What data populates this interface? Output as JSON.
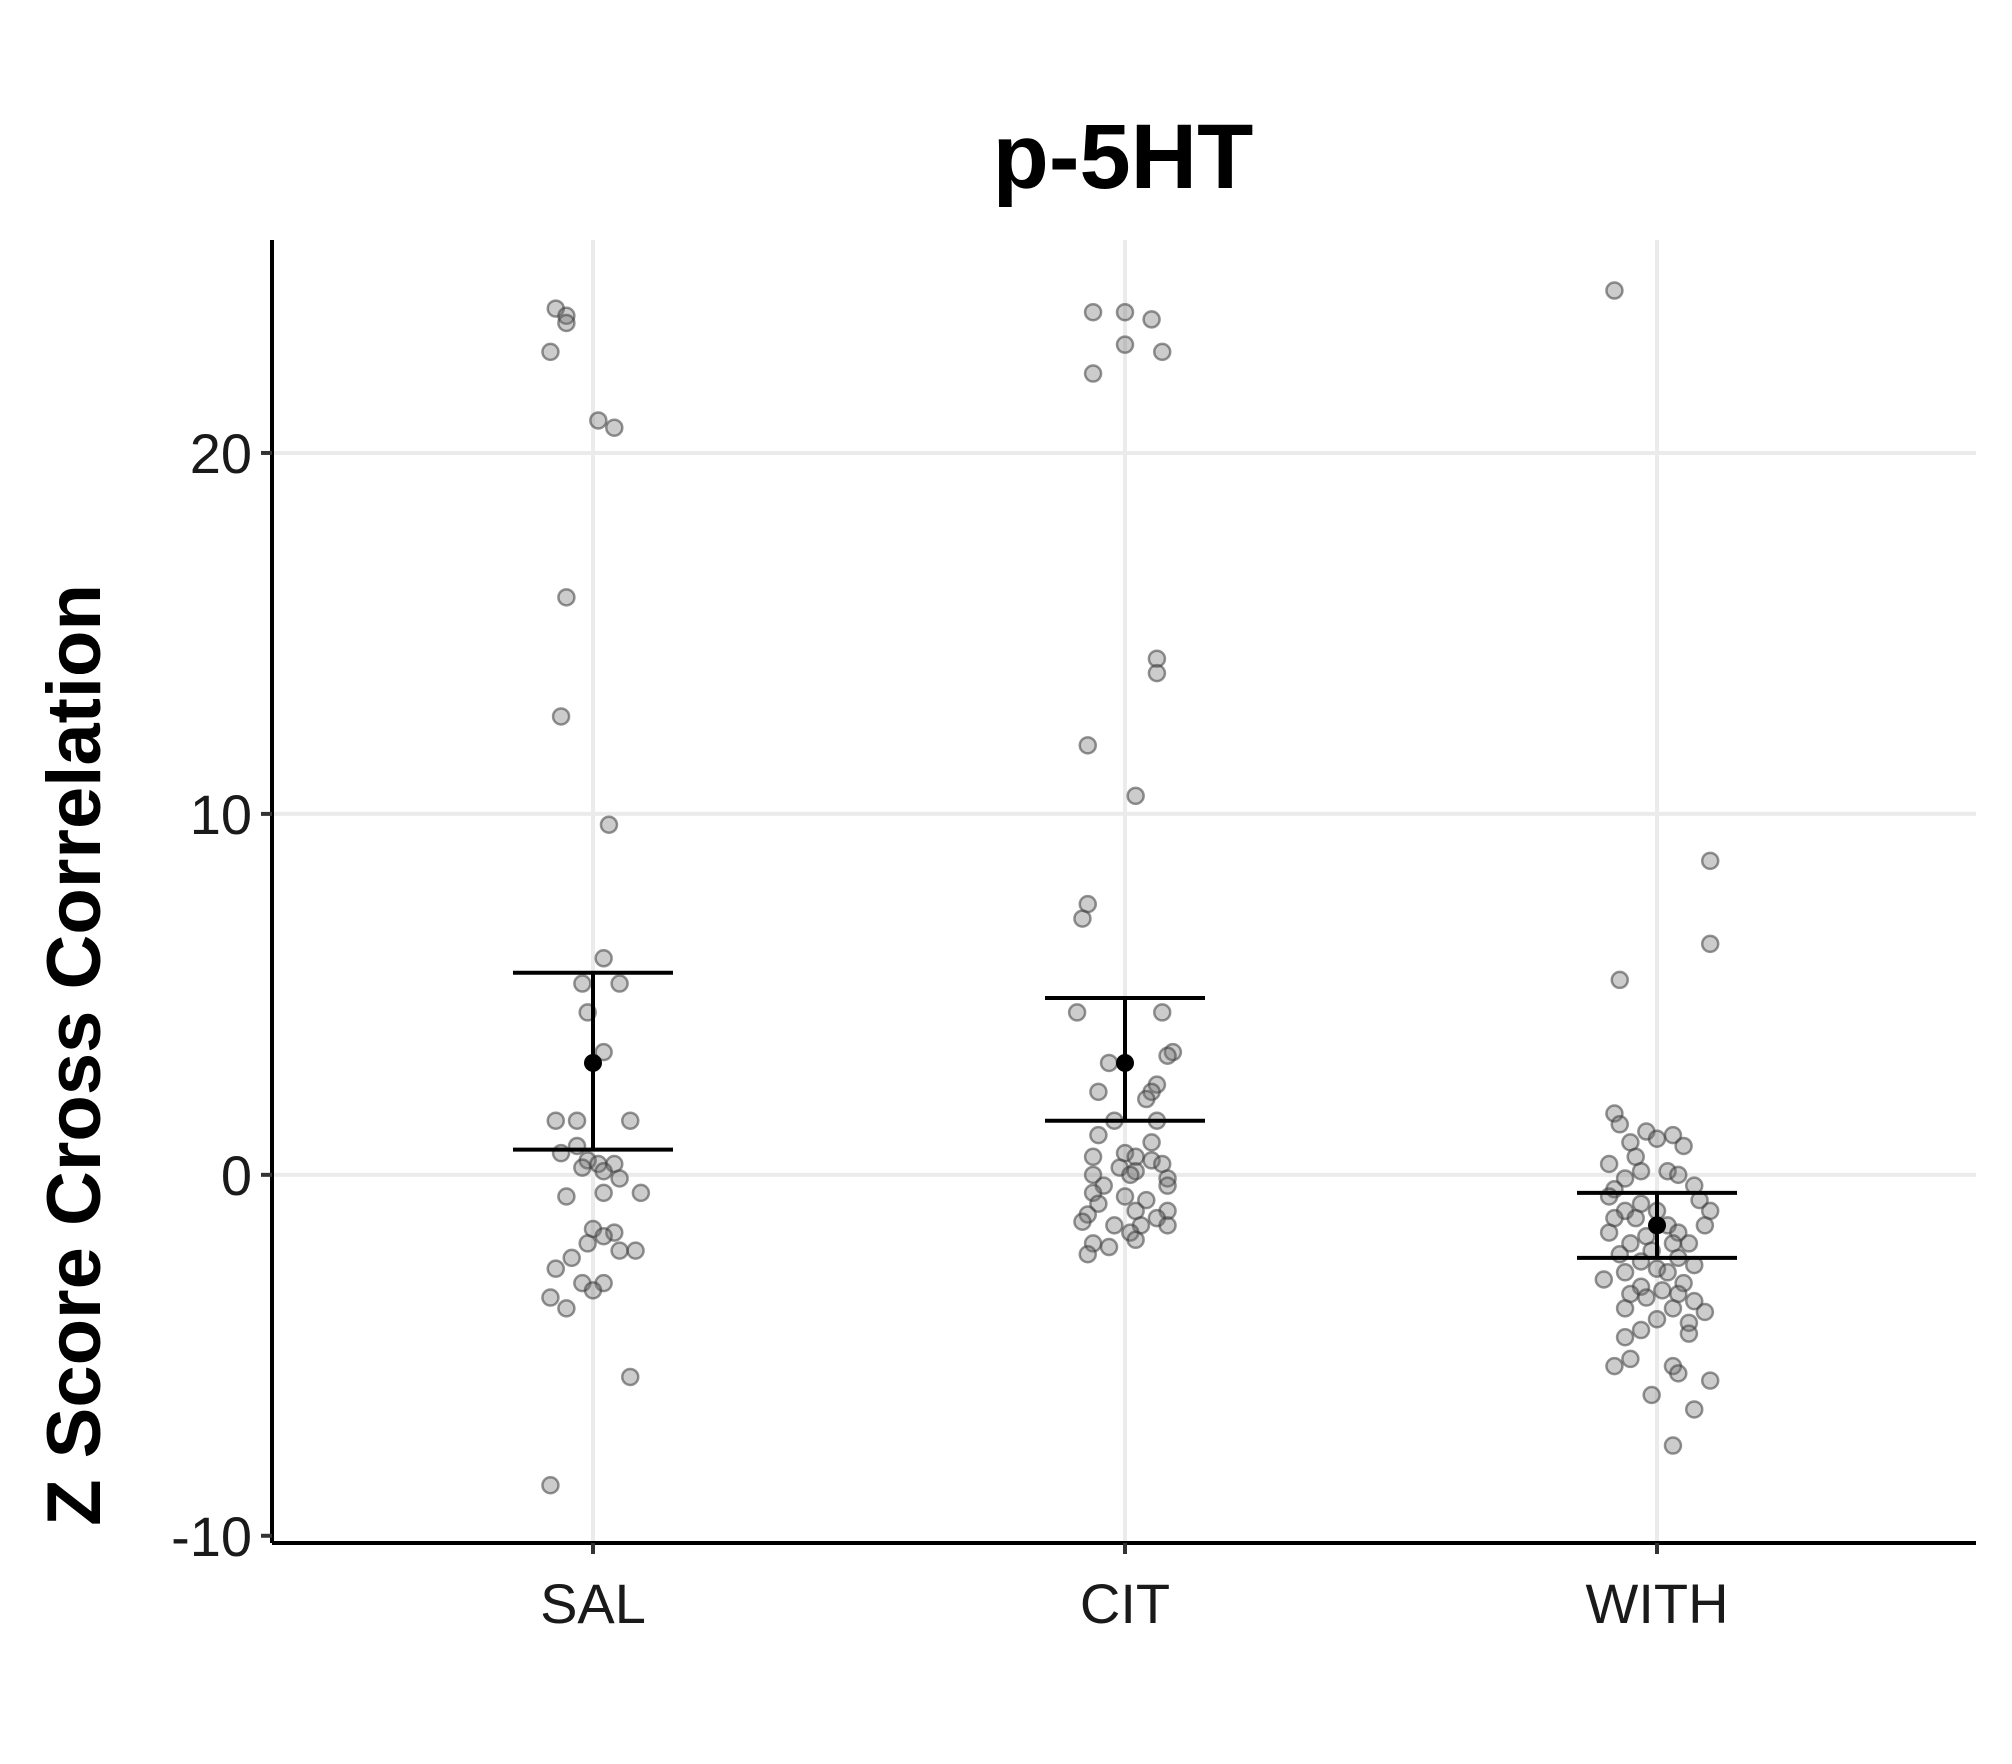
{
  "chart_data": {
    "type": "scatter",
    "subtype": "jitter-strip with mean and error bars",
    "title": "p-5HT",
    "xlabel": "",
    "ylabel": "Z Score Cross Correlation",
    "categories": [
      "SAL",
      "CIT",
      "WITH"
    ],
    "ylim": [
      -10.2,
      25.9
    ],
    "yticks": [
      -10,
      0,
      10,
      20
    ],
    "ytick_labels": [
      "-10",
      "0",
      "10",
      "20"
    ],
    "grid": true,
    "legend": "none",
    "colors": {
      "points": "#808080",
      "mean": "#000000",
      "errorbar": "#000000",
      "gridline": "#ebebeb"
    },
    "groups": [
      {
        "category": "SAL",
        "mean": 3.1,
        "lower": 0.7,
        "upper": 5.6,
        "points": [
          [
            -0.07,
            24.0
          ],
          [
            -0.05,
            23.8
          ],
          [
            -0.05,
            23.6
          ],
          [
            -0.08,
            22.8
          ],
          [
            0.01,
            20.9
          ],
          [
            0.04,
            20.7
          ],
          [
            -0.05,
            16.0
          ],
          [
            -0.06,
            12.7
          ],
          [
            0.03,
            9.7
          ],
          [
            0.02,
            6.0
          ],
          [
            -0.02,
            5.3
          ],
          [
            0.05,
            5.3
          ],
          [
            -0.01,
            4.5
          ],
          [
            0.02,
            3.4
          ],
          [
            -0.07,
            1.5
          ],
          [
            -0.03,
            1.5
          ],
          [
            0.07,
            1.5
          ],
          [
            -0.06,
            0.6
          ],
          [
            -0.03,
            0.8
          ],
          [
            -0.01,
            0.4
          ],
          [
            0.01,
            0.3
          ],
          [
            0.04,
            0.3
          ],
          [
            -0.02,
            0.2
          ],
          [
            0.02,
            0.1
          ],
          [
            0.05,
            -0.1
          ],
          [
            -0.05,
            -0.6
          ],
          [
            0.02,
            -0.5
          ],
          [
            0.09,
            -0.5
          ],
          [
            0.0,
            -1.5
          ],
          [
            0.04,
            -1.6
          ],
          [
            0.02,
            -1.7
          ],
          [
            -0.01,
            -1.9
          ],
          [
            -0.04,
            -2.3
          ],
          [
            0.05,
            -2.1
          ],
          [
            0.08,
            -2.1
          ],
          [
            -0.07,
            -2.6
          ],
          [
            -0.02,
            -3.0
          ],
          [
            0.02,
            -3.0
          ],
          [
            0.0,
            -3.2
          ],
          [
            -0.08,
            -3.4
          ],
          [
            -0.05,
            -3.7
          ],
          [
            0.07,
            -5.6
          ],
          [
            -0.08,
            -8.6
          ]
        ]
      },
      {
        "category": "CIT",
        "mean": 3.1,
        "lower": 1.5,
        "upper": 4.9,
        "points": [
          [
            -0.06,
            23.9
          ],
          [
            0.0,
            23.9
          ],
          [
            0.05,
            23.7
          ],
          [
            0.0,
            23.0
          ],
          [
            0.07,
            22.8
          ],
          [
            -0.06,
            22.2
          ],
          [
            0.06,
            14.3
          ],
          [
            0.06,
            13.9
          ],
          [
            -0.07,
            11.9
          ],
          [
            0.02,
            10.5
          ],
          [
            -0.07,
            7.5
          ],
          [
            -0.08,
            7.1
          ],
          [
            -0.09,
            4.5
          ],
          [
            0.07,
            4.5
          ],
          [
            0.09,
            3.4
          ],
          [
            0.08,
            3.3
          ],
          [
            -0.03,
            3.1
          ],
          [
            0.06,
            2.5
          ],
          [
            0.05,
            2.3
          ],
          [
            -0.05,
            2.3
          ],
          [
            0.04,
            2.1
          ],
          [
            -0.02,
            1.5
          ],
          [
            0.06,
            1.5
          ],
          [
            -0.05,
            1.1
          ],
          [
            0.05,
            0.9
          ],
          [
            0.0,
            0.6
          ],
          [
            -0.06,
            0.5
          ],
          [
            0.02,
            0.5
          ],
          [
            0.05,
            0.4
          ],
          [
            0.07,
            0.3
          ],
          [
            -0.01,
            0.2
          ],
          [
            0.02,
            0.1
          ],
          [
            -0.06,
            0.0
          ],
          [
            0.01,
            0.0
          ],
          [
            0.08,
            -0.1
          ],
          [
            -0.04,
            -0.3
          ],
          [
            0.08,
            -0.3
          ],
          [
            -0.06,
            -0.5
          ],
          [
            0.0,
            -0.6
          ],
          [
            0.04,
            -0.7
          ],
          [
            -0.05,
            -0.8
          ],
          [
            0.02,
            -1.0
          ],
          [
            0.08,
            -1.0
          ],
          [
            -0.07,
            -1.1
          ],
          [
            0.06,
            -1.2
          ],
          [
            -0.08,
            -1.3
          ],
          [
            -0.02,
            -1.4
          ],
          [
            0.03,
            -1.4
          ],
          [
            0.08,
            -1.4
          ],
          [
            0.01,
            -1.6
          ],
          [
            -0.06,
            -1.9
          ],
          [
            0.02,
            -1.8
          ],
          [
            -0.03,
            -2.0
          ],
          [
            -0.07,
            -2.2
          ]
        ]
      },
      {
        "category": "WITH",
        "mean": -1.4,
        "lower": -2.3,
        "upper": -0.5,
        "points": [
          [
            -0.08,
            24.5
          ],
          [
            0.1,
            8.7
          ],
          [
            0.1,
            6.4
          ],
          [
            -0.07,
            5.4
          ],
          [
            -0.08,
            1.7
          ],
          [
            -0.07,
            1.4
          ],
          [
            -0.02,
            1.2
          ],
          [
            0.03,
            1.1
          ],
          [
            0.0,
            1.0
          ],
          [
            -0.05,
            0.9
          ],
          [
            0.05,
            0.8
          ],
          [
            -0.04,
            0.5
          ],
          [
            -0.09,
            0.3
          ],
          [
            -0.03,
            0.1
          ],
          [
            0.02,
            0.1
          ],
          [
            0.04,
            0.0
          ],
          [
            -0.06,
            -0.1
          ],
          [
            0.07,
            -0.3
          ],
          [
            -0.08,
            -0.4
          ],
          [
            -0.09,
            -0.6
          ],
          [
            0.08,
            -0.7
          ],
          [
            -0.03,
            -0.8
          ],
          [
            -0.06,
            -1.0
          ],
          [
            0.0,
            -1.0
          ],
          [
            0.1,
            -1.0
          ],
          [
            -0.08,
            -1.2
          ],
          [
            -0.04,
            -1.2
          ],
          [
            0.02,
            -1.4
          ],
          [
            0.09,
            -1.4
          ],
          [
            -0.09,
            -1.6
          ],
          [
            0.04,
            -1.6
          ],
          [
            -0.02,
            -1.7
          ],
          [
            -0.05,
            -1.9
          ],
          [
            0.03,
            -1.9
          ],
          [
            0.06,
            -1.9
          ],
          [
            -0.01,
            -2.1
          ],
          [
            -0.07,
            -2.2
          ],
          [
            0.04,
            -2.3
          ],
          [
            -0.03,
            -2.4
          ],
          [
            0.07,
            -2.5
          ],
          [
            0.0,
            -2.6
          ],
          [
            -0.06,
            -2.7
          ],
          [
            0.02,
            -2.7
          ],
          [
            -0.1,
            -2.9
          ],
          [
            0.05,
            -3.0
          ],
          [
            -0.03,
            -3.1
          ],
          [
            0.01,
            -3.2
          ],
          [
            -0.05,
            -3.3
          ],
          [
            0.04,
            -3.3
          ],
          [
            -0.02,
            -3.4
          ],
          [
            0.07,
            -3.5
          ],
          [
            0.03,
            -3.7
          ],
          [
            -0.06,
            -3.7
          ],
          [
            0.09,
            -3.8
          ],
          [
            0.0,
            -4.0
          ],
          [
            0.06,
            -4.1
          ],
          [
            -0.03,
            -4.3
          ],
          [
            0.06,
            -4.4
          ],
          [
            -0.06,
            -4.5
          ],
          [
            -0.05,
            -5.1
          ],
          [
            -0.08,
            -5.3
          ],
          [
            0.03,
            -5.3
          ],
          [
            0.04,
            -5.5
          ],
          [
            0.1,
            -5.7
          ],
          [
            -0.01,
            -6.1
          ],
          [
            0.07,
            -6.5
          ],
          [
            0.03,
            -7.5
          ]
        ]
      }
    ]
  }
}
